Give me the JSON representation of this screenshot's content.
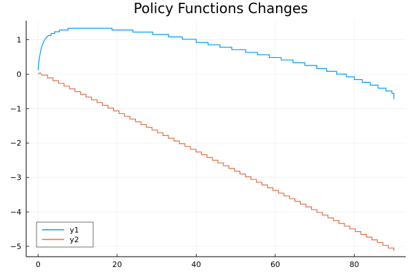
{
  "chart_data": {
    "type": "line",
    "title": "Policy Functions Changes",
    "xlabel": "",
    "ylabel": "",
    "xlim": [
      -3,
      93
    ],
    "ylim": [
      -5.3,
      1.55
    ],
    "xticks": [
      0,
      20,
      40,
      60,
      80
    ],
    "yticks": [
      1,
      0,
      -1,
      -2,
      -3,
      -4,
      -5
    ],
    "ytick_labels": [
      "1",
      "0",
      "−1",
      "−2",
      "−3",
      "−4",
      "−5"
    ],
    "grid": true,
    "legend": "bottom-left",
    "series": [
      {
        "name": "y1",
        "color": "#009af9",
        "points": [
          [
            0.0,
            0.12
          ],
          [
            0.2,
            0.35
          ],
          [
            0.45,
            0.55
          ],
          [
            0.75,
            0.72
          ],
          [
            1.1,
            0.85
          ],
          [
            1.5,
            0.96
          ],
          [
            2.0,
            1.05
          ],
          [
            2.6,
            1.12
          ],
          [
            3.3,
            1.18
          ],
          [
            4.2,
            1.23
          ],
          [
            5.4,
            1.28
          ],
          [
            7.6,
            1.33
          ],
          [
            18.7,
            1.28
          ],
          [
            24.0,
            1.22
          ],
          [
            29.0,
            1.15
          ],
          [
            33.0,
            1.08
          ],
          [
            36.5,
            1.01
          ],
          [
            40.0,
            0.92
          ],
          [
            43.0,
            0.85
          ],
          [
            46.0,
            0.78
          ],
          [
            49.0,
            0.71
          ],
          [
            52.5,
            0.63
          ],
          [
            55.5,
            0.56
          ],
          [
            58.5,
            0.48
          ],
          [
            61.5,
            0.41
          ],
          [
            64.5,
            0.33
          ],
          [
            67.5,
            0.25
          ],
          [
            70.5,
            0.16
          ],
          [
            73.0,
            0.08
          ],
          [
            75.5,
            0.0
          ],
          [
            78.0,
            -0.08
          ],
          [
            80.0,
            -0.16
          ],
          [
            82.0,
            -0.24
          ],
          [
            84.0,
            -0.32
          ],
          [
            86.0,
            -0.41
          ],
          [
            88.0,
            -0.49
          ],
          [
            89.5,
            -0.56
          ],
          [
            90.0,
            -0.73
          ]
        ]
      },
      {
        "name": "y2",
        "color": "#e26f46",
        "points": [
          [
            0.0,
            0.0
          ],
          [
            0.5,
            0.04
          ],
          [
            1.0,
            -0.03
          ],
          [
            90.0,
            -5.13
          ]
        ]
      }
    ]
  }
}
